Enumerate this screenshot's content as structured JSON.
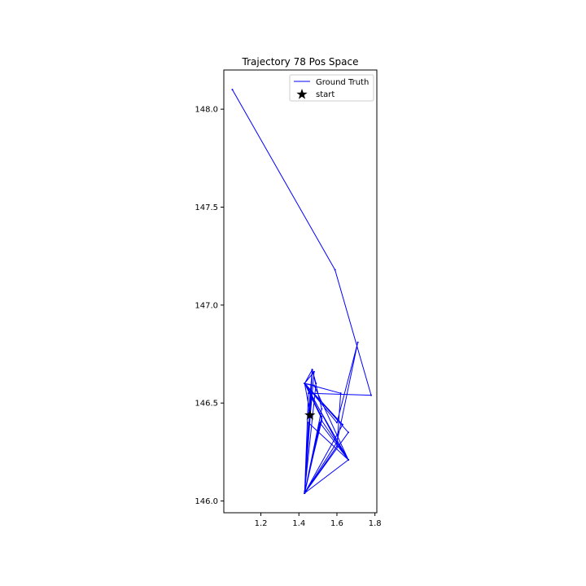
{
  "chart_data": {
    "type": "line",
    "title": "Trajectory 78 Pos Space",
    "xlabel": "",
    "ylabel": "",
    "xlim": [
      1.005,
      1.81
    ],
    "ylim": [
      145.94,
      148.2
    ],
    "xticks": [
      1.2,
      1.4,
      1.6,
      1.8
    ],
    "xtick_labels": [
      "1.2",
      "1.4",
      "1.6",
      "1.8"
    ],
    "yticks": [
      146.0,
      146.5,
      147.0,
      147.5,
      148.0
    ],
    "ytick_labels": [
      "146.0",
      "146.5",
      "147.0",
      "147.5",
      "148.0"
    ],
    "grid": false,
    "legend": {
      "placement": "top-right",
      "entries": [
        {
          "label": "Ground Truth",
          "marker": "line",
          "color": "#0000ff"
        },
        {
          "label": "start",
          "marker": "star",
          "color": "#000000"
        }
      ]
    },
    "series": [
      {
        "name": "Ground Truth",
        "color": "#0000ff",
        "points": [
          [
            1.45,
            146.44
          ],
          [
            1.47,
            146.67
          ],
          [
            1.43,
            146.6
          ],
          [
            1.62,
            146.55
          ],
          [
            1.6,
            146.28
          ],
          [
            1.43,
            146.04
          ],
          [
            1.46,
            146.44
          ],
          [
            1.48,
            146.66
          ],
          [
            1.43,
            146.6
          ],
          [
            1.66,
            146.35
          ],
          [
            1.43,
            146.04
          ],
          [
            1.52,
            146.43
          ],
          [
            1.43,
            146.6
          ],
          [
            1.66,
            146.21
          ],
          [
            1.43,
            146.04
          ],
          [
            1.47,
            146.67
          ],
          [
            1.49,
            146.6
          ],
          [
            1.43,
            146.05
          ],
          [
            1.52,
            146.41
          ],
          [
            1.66,
            146.21
          ],
          [
            1.48,
            146.59
          ],
          [
            1.43,
            146.6
          ],
          [
            1.6,
            146.4
          ],
          [
            1.71,
            146.81
          ],
          [
            1.6,
            146.3
          ],
          [
            1.43,
            146.04
          ],
          [
            1.63,
            146.39
          ],
          [
            1.44,
            146.59
          ],
          [
            1.6,
            146.3
          ],
          [
            1.66,
            146.21
          ],
          [
            1.45,
            146.4
          ],
          [
            1.43,
            146.04
          ],
          [
            1.52,
            146.47
          ],
          [
            1.47,
            146.67
          ],
          [
            1.43,
            146.6
          ],
          [
            1.66,
            146.21
          ],
          [
            1.43,
            146.04
          ],
          [
            1.51,
            146.4
          ],
          [
            1.66,
            146.21
          ],
          [
            1.43,
            146.6
          ],
          [
            1.46,
            146.44
          ],
          [
            1.47,
            146.67
          ],
          [
            1.43,
            146.04
          ],
          [
            1.52,
            146.42
          ],
          [
            1.43,
            146.6
          ],
          [
            1.66,
            146.21
          ],
          [
            1.43,
            146.04
          ],
          [
            1.45,
            146.55
          ],
          [
            1.78,
            146.54
          ],
          [
            1.59,
            147.18
          ],
          [
            1.05,
            148.1
          ]
        ]
      }
    ],
    "start": {
      "label": "start",
      "x": 1.458,
      "y": 146.438
    }
  }
}
